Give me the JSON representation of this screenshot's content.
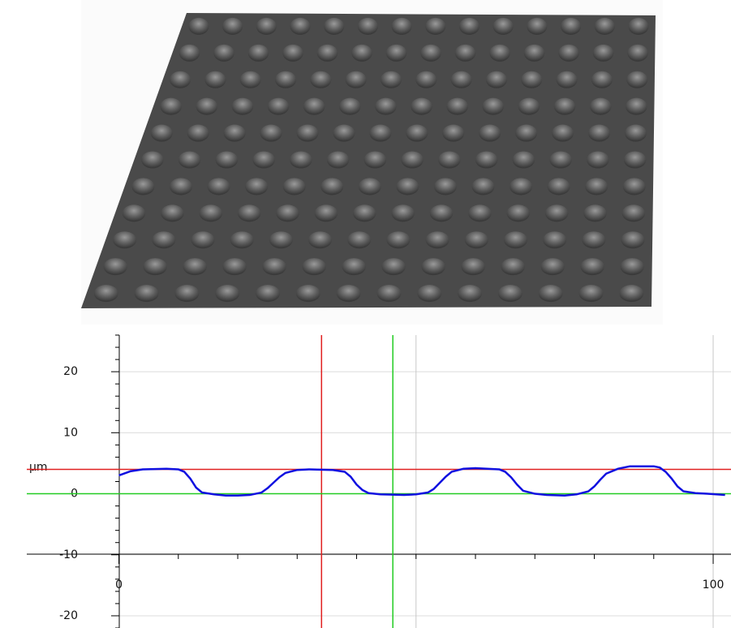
{
  "chart_data": {
    "type": "line",
    "y_label": "µm",
    "x": [
      0,
      2,
      4,
      8,
      10,
      11,
      12,
      13,
      14,
      16,
      18,
      20,
      22,
      24,
      25,
      26,
      27,
      28,
      30,
      32,
      36,
      38,
      39,
      40,
      41,
      42,
      44,
      48,
      50,
      52,
      53,
      54,
      55,
      56,
      58,
      60,
      62,
      64,
      65,
      66,
      67,
      68,
      70,
      72,
      75,
      77,
      79,
      80,
      81,
      82,
      84,
      86,
      90,
      91,
      92,
      93,
      94,
      95,
      97,
      99,
      102
    ],
    "series": [
      {
        "color": "#1010e0",
        "values": [
          3.0,
          3.7,
          4.0,
          4.1,
          4.0,
          3.6,
          2.5,
          1.0,
          0.2,
          -0.1,
          -0.3,
          -0.3,
          -0.2,
          0.2,
          0.9,
          1.8,
          2.7,
          3.4,
          3.9,
          4.0,
          3.9,
          3.6,
          2.8,
          1.5,
          0.6,
          0.1,
          -0.1,
          -0.2,
          -0.1,
          0.2,
          0.8,
          1.8,
          2.8,
          3.6,
          4.1,
          4.2,
          4.1,
          4.0,
          3.6,
          2.7,
          1.5,
          0.5,
          0.0,
          -0.2,
          -0.3,
          -0.1,
          0.4,
          1.2,
          2.3,
          3.3,
          4.1,
          4.5,
          4.5,
          4.3,
          3.6,
          2.5,
          1.2,
          0.4,
          0.1,
          0.0,
          -0.2
        ]
      }
    ],
    "xlim": [
      -15.5,
      103
    ],
    "ylim": [
      -22,
      26
    ],
    "xticks": [
      0,
      100
    ],
    "x_grid": [
      50,
      100
    ],
    "x_minor_ticks": [
      10,
      20,
      30,
      40,
      50,
      60,
      70,
      80,
      90
    ],
    "yticks": [
      20,
      10,
      0,
      -10,
      -20
    ],
    "y_minor_ticks": [
      -22,
      -18,
      -16,
      -14,
      -12,
      -8,
      -6,
      -4,
      -2,
      2,
      4,
      6,
      8,
      12,
      14,
      16,
      18,
      22,
      24,
      26
    ],
    "grid": true,
    "cursors": [
      {
        "color": "#e02020",
        "x": 34.1,
        "y": 4.0
      },
      {
        "color": "#22cc22",
        "x": 46.1,
        "y": 0
      }
    ]
  }
}
